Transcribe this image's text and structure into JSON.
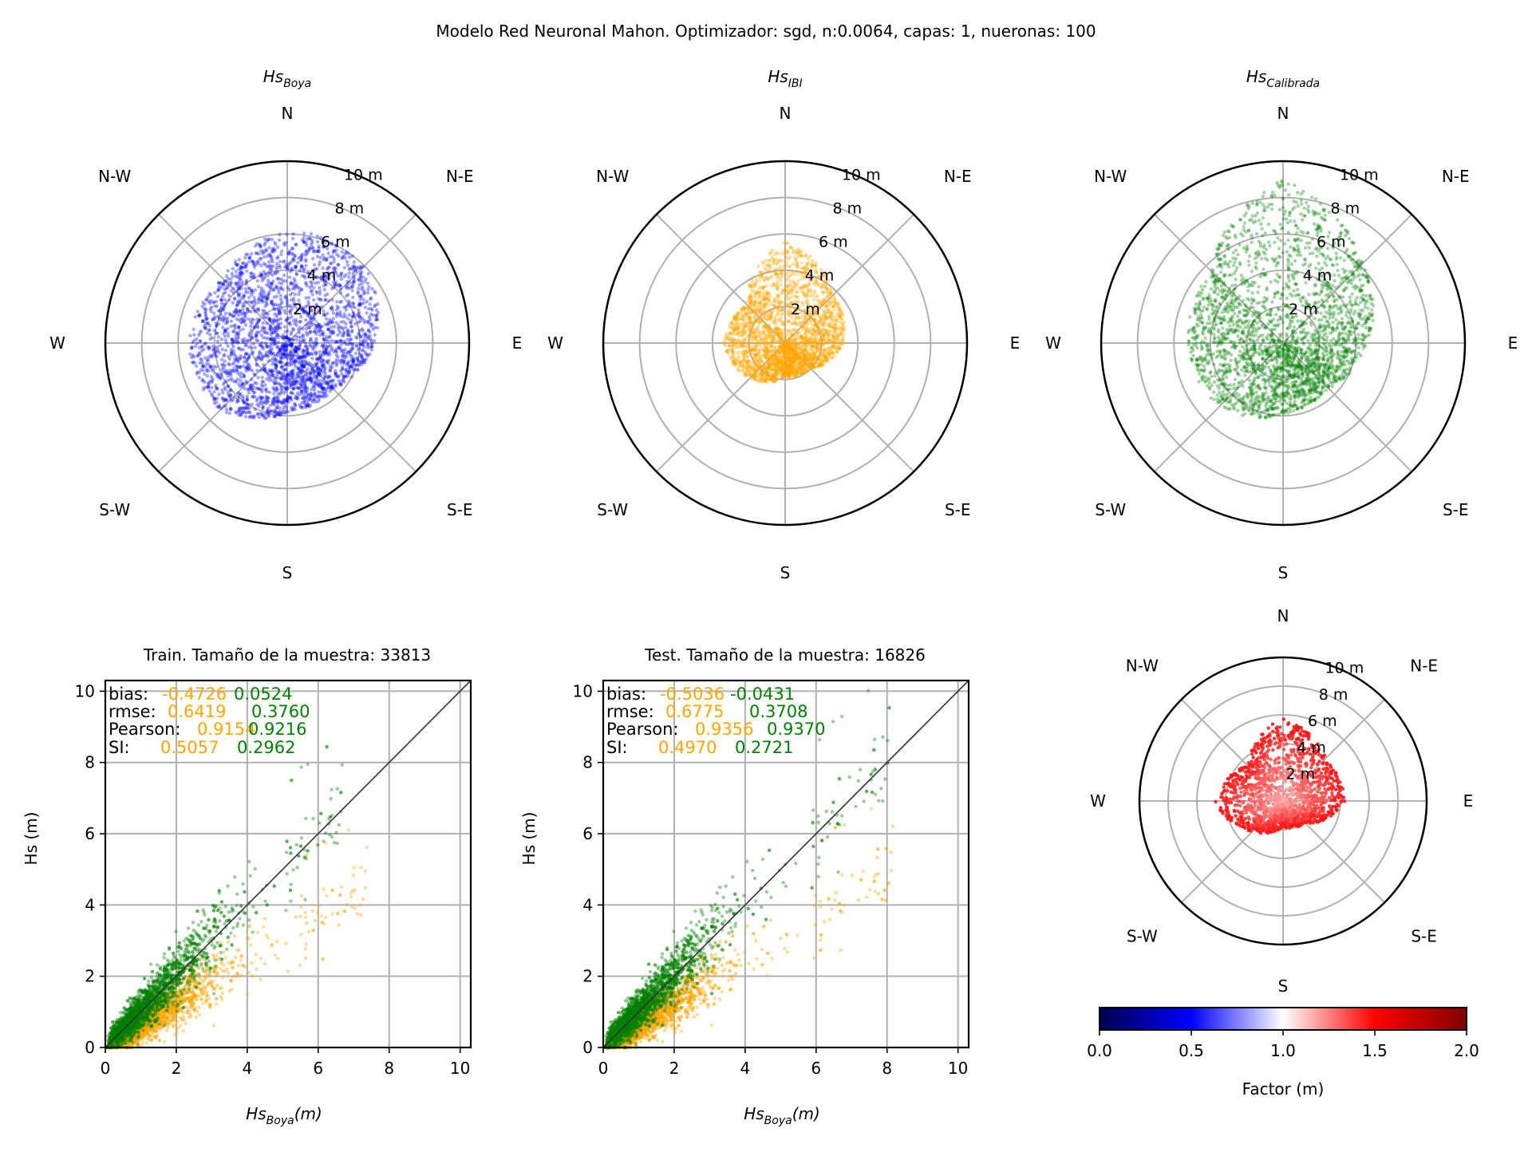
{
  "figure": {
    "suptitle": "Modelo Red Neuronal Mahon. Optimizador: sgd, n:0.0064, capas: 1, nueronas: 100"
  },
  "rose": {
    "directions": [
      "N",
      "N-E",
      "E",
      "S-E",
      "S",
      "S-W",
      "W",
      "N-W"
    ],
    "radial_ticks": [
      "2 m",
      "4 m",
      "6 m",
      "8 m",
      "10 m"
    ],
    "rmax": 10
  },
  "polar_plots": [
    {
      "title_main": "Hs",
      "title_sub": "Boya",
      "color": "#0000ff"
    },
    {
      "title_main": "Hs",
      "title_sub": "IBI",
      "color": "#ffa500"
    },
    {
      "title_main": "Hs",
      "title_sub": "Calibrada",
      "color": "#008000"
    },
    {
      "color": "#ff0000"
    }
  ],
  "colorbar": {
    "label": "Factor (m)",
    "ticks": [
      "0.0",
      "0.5",
      "1.0",
      "1.5",
      "2.0"
    ],
    "range": [
      0,
      2
    ],
    "colors": [
      "#00004c",
      "#0000ff",
      "#ffffff",
      "#ff0000",
      "#800000"
    ]
  },
  "scatter_panels": [
    {
      "title": "Train. Tamaño de la muestra: 33813",
      "ylabel": "Hs (m)",
      "xlabel_main": "Hs",
      "xlabel_sub": "Boya",
      "xlabel_unit": "(m)",
      "stats": {
        "labels": [
          "bias:",
          "rmse:",
          "Pearson:",
          "SI:"
        ],
        "ibi": [
          "-0.4726",
          "0.6419",
          "0.9154",
          "0.5057"
        ],
        "calibrated": [
          "0.0524",
          "0.3760",
          "0.9216",
          "0.2962"
        ]
      }
    },
    {
      "title": "Test. Tamaño de la muestra: 16826",
      "ylabel": "Hs (m)",
      "xlabel_main": "Hs",
      "xlabel_sub": "Boya",
      "xlabel_unit": "(m)",
      "stats": {
        "labels": [
          "bias:",
          "rmse:",
          "Pearson:",
          "SI:"
        ],
        "ibi": [
          "-0.5036",
          "0.6775",
          "0.9356",
          "0.4970"
        ],
        "calibrated": [
          "-0.0431",
          "0.3708",
          "0.9370",
          "0.2721"
        ]
      }
    }
  ],
  "chart_data": [
    {
      "type": "scatter",
      "projection": "polar",
      "title": "Hs_Boya",
      "color": "#0000ff",
      "rmax": 10,
      "direction_labels": [
        "N",
        "N-E",
        "E",
        "S-E",
        "S",
        "S-W",
        "W",
        "N-W"
      ],
      "radial_ticks": [
        2,
        4,
        6,
        8,
        10
      ],
      "envelope": {
        "theta_deg": [
          0,
          45,
          90,
          135,
          180,
          225,
          270,
          315
        ],
        "r": [
          6.2,
          6.0,
          4.8,
          3.6,
          3.8,
          5.2,
          5.4,
          5.0
        ]
      },
      "grid": true
    },
    {
      "type": "scatter",
      "projection": "polar",
      "title": "Hs_IBI",
      "color": "#ffa500",
      "rmax": 10,
      "direction_labels": [
        "N",
        "N-E",
        "E",
        "S-E",
        "S",
        "S-W",
        "W",
        "N-W"
      ],
      "radial_ticks": [
        2,
        4,
        6,
        8,
        10
      ],
      "envelope": {
        "theta_deg": [
          0,
          45,
          90,
          135,
          180,
          225,
          270,
          315
        ],
        "r": [
          5.6,
          3.8,
          3.2,
          2.0,
          1.9,
          2.8,
          3.4,
          3.0
        ]
      },
      "grid": true
    },
    {
      "type": "scatter",
      "projection": "polar",
      "title": "Hs_Calibrada",
      "color": "#008000",
      "rmax": 10,
      "direction_labels": [
        "N",
        "N-E",
        "E",
        "S-E",
        "S",
        "S-W",
        "W",
        "N-W"
      ],
      "radial_ticks": [
        2,
        4,
        6,
        8,
        10
      ],
      "envelope": {
        "theta_deg": [
          0,
          45,
          90,
          135,
          180,
          225,
          270,
          315
        ],
        "r": [
          9.0,
          6.2,
          4.6,
          3.5,
          3.9,
          5.0,
          5.2,
          5.6
        ]
      },
      "grid": true
    },
    {
      "type": "scatter",
      "projection": "polar",
      "title": "",
      "color_scale": "Factor (m)",
      "rmax": 10,
      "direction_labels": [
        "N",
        "N-E",
        "E",
        "S-E",
        "S",
        "S-W",
        "W",
        "N-W"
      ],
      "radial_ticks": [
        2,
        4,
        6,
        8,
        10
      ],
      "envelope": {
        "theta_deg": [
          0,
          45,
          90,
          135,
          180,
          225,
          270,
          315
        ],
        "r": [
          5.8,
          4.2,
          4.3,
          2.2,
          1.8,
          3.0,
          4.8,
          3.5
        ]
      },
      "grid": true
    },
    {
      "type": "scatter",
      "title": "Train. Tamaño de la muestra: 33813",
      "xlabel": "Hs_Boya (m)",
      "ylabel": "Hs (m)",
      "xlim": [
        0,
        10.3
      ],
      "ylim": [
        0,
        10.3
      ],
      "xticks": [
        0,
        2,
        4,
        6,
        8,
        10
      ],
      "yticks": [
        0,
        2,
        4,
        6,
        8,
        10
      ],
      "identity_line": true,
      "grid": true,
      "series": [
        {
          "name": "IBI",
          "color": "#ffa500",
          "slope": 0.62,
          "x_max": 7.4
        },
        {
          "name": "Calibrada",
          "color": "#008000",
          "slope": 1.0,
          "x_max": 6.7
        }
      ]
    },
    {
      "type": "scatter",
      "title": "Test. Tamaño de la muestra: 16826",
      "xlabel": "Hs_Boya (m)",
      "ylabel": "Hs (m)",
      "xlim": [
        0,
        10.3
      ],
      "ylim": [
        0,
        10.3
      ],
      "xticks": [
        0,
        2,
        4,
        6,
        8,
        10
      ],
      "yticks": [
        0,
        2,
        4,
        6,
        8,
        10
      ],
      "identity_line": true,
      "grid": true,
      "series": [
        {
          "name": "IBI",
          "color": "#ffa500",
          "slope": 0.62,
          "x_max": 8.2
        },
        {
          "name": "Calibrada",
          "color": "#008000",
          "slope": 1.0,
          "x_max": 8.1
        }
      ]
    }
  ]
}
